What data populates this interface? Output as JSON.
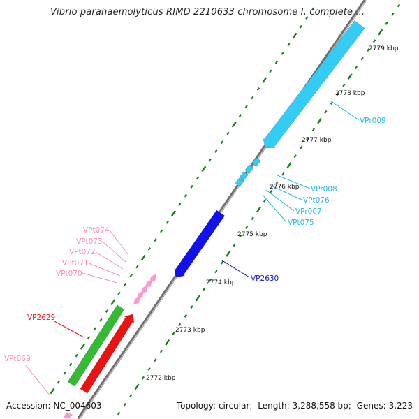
{
  "title": "Vibrio parahaemolyticus RIMD 2210633 chromosome I, complete ...",
  "footer": {
    "accession_label": "Accession:",
    "accession_value": "NC_004603",
    "topology_label": "Topology:",
    "topology_value": "circular;",
    "length_label": "Length:",
    "length_value": "3,288,558 bp;",
    "genes_label": "Genes:",
    "genes_value": "3,223"
  },
  "scale_ticks": [
    "2772 kbp",
    "2773 kbp",
    "2774 kbp",
    "2775 kbp",
    "2776 kbp",
    "2777 kbp",
    "2778 kbp",
    "2779 kbp"
  ],
  "colors": {
    "backbone": "#8a8a8a",
    "tick_green": "#1a7f1a",
    "gene_forward": "#33bb33",
    "gene_reverse_red": "#ee1111",
    "gene_blue": "#1111ee",
    "rRNA_cyan": "#33ccf5",
    "tRNA_pink": "#ff99cc",
    "label_red": "#ee1111",
    "label_blue": "#1111cc",
    "label_cyan": "#22b8e8",
    "label_pink": "#ff88bb"
  },
  "features": [
    {
      "label": "VP2629",
      "type": "gene",
      "color_key": "label_red"
    },
    {
      "label": "VP2630",
      "type": "gene",
      "color_key": "label_blue"
    },
    {
      "label": "VPt069",
      "type": "tRNA",
      "color_key": "label_pink"
    },
    {
      "label": "VPt070",
      "type": "tRNA",
      "color_key": "label_pink"
    },
    {
      "label": "VPt071",
      "type": "tRNA",
      "color_key": "label_pink"
    },
    {
      "label": "VPt072",
      "type": "tRNA",
      "color_key": "label_pink"
    },
    {
      "label": "VPt073",
      "type": "tRNA",
      "color_key": "label_pink"
    },
    {
      "label": "VPt074",
      "type": "tRNA",
      "color_key": "label_pink"
    },
    {
      "label": "VPt075",
      "type": "tRNA",
      "color_key": "label_cyan"
    },
    {
      "label": "VPr007",
      "type": "rRNA",
      "color_key": "label_cyan"
    },
    {
      "label": "VPt076",
      "type": "tRNA",
      "color_key": "label_cyan"
    },
    {
      "label": "VPr008",
      "type": "rRNA",
      "color_key": "label_cyan"
    },
    {
      "label": "VPr009",
      "type": "rRNA",
      "color_key": "label_cyan"
    }
  ]
}
